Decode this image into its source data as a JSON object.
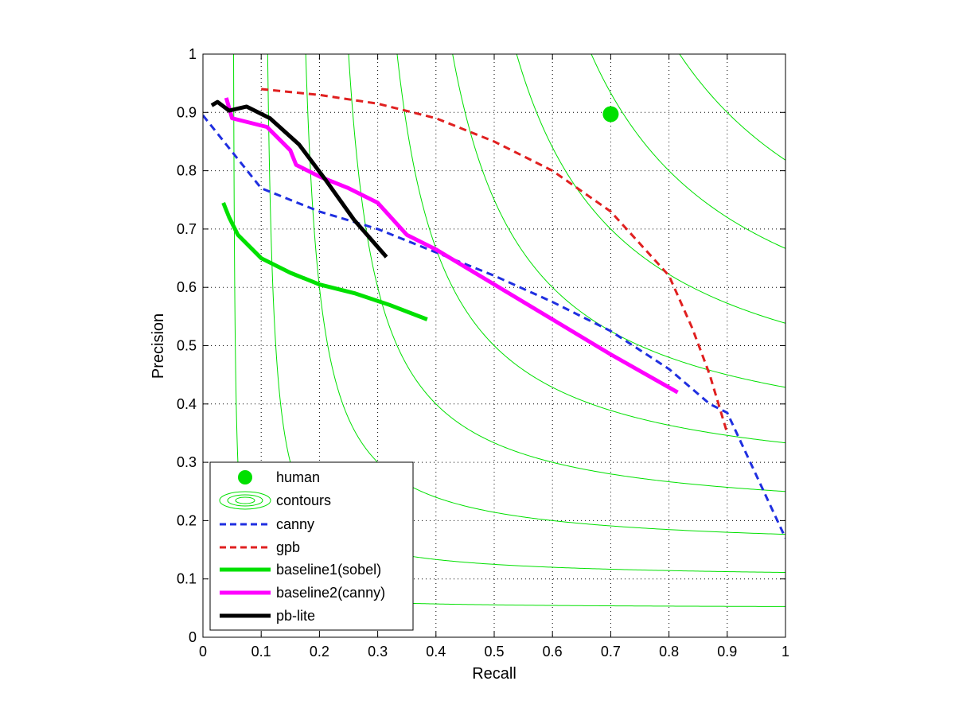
{
  "chart_data": {
    "type": "line",
    "xlabel": "Recall",
    "ylabel": "Precision",
    "xlim": [
      0,
      1
    ],
    "ylim": [
      0,
      1
    ],
    "xticks": [
      0,
      0.1,
      0.2,
      0.3,
      0.4,
      0.5,
      0.6,
      0.7,
      0.8,
      0.9,
      1
    ],
    "yticks": [
      0,
      0.1,
      0.2,
      0.3,
      0.4,
      0.5,
      0.6,
      0.7,
      0.8,
      0.9,
      1
    ],
    "xtick_labels": [
      "0",
      "0.1",
      "0.2",
      "0.3",
      "0.4",
      "0.5",
      "0.6",
      "0.7",
      "0.8",
      "0.9",
      "1"
    ],
    "ytick_labels": [
      "0",
      "0.1",
      "0.2",
      "0.3",
      "0.4",
      "0.5",
      "0.6",
      "0.7",
      "0.8",
      "0.9",
      "1"
    ],
    "grid": "dotted",
    "legend_placement": "bottom-left",
    "contours": {
      "name": "contours",
      "f_levels": [
        0.1,
        0.2,
        0.3,
        0.4,
        0.5,
        0.6,
        0.7,
        0.8,
        0.9
      ],
      "color": "#00e000"
    },
    "human": {
      "name": "human",
      "x": 0.7,
      "y": 0.897,
      "color": "#00e000"
    },
    "series": [
      {
        "name": "canny",
        "style": "dashed",
        "color": "#1f2fe0",
        "x": [
          0.0,
          0.1,
          0.2,
          0.3,
          0.4,
          0.5,
          0.6,
          0.7,
          0.8,
          0.87,
          0.9,
          1.0
        ],
        "y": [
          0.895,
          0.77,
          0.73,
          0.7,
          0.66,
          0.62,
          0.575,
          0.525,
          0.46,
          0.4,
          0.385,
          0.17
        ]
      },
      {
        "name": "gpb",
        "style": "dashed",
        "color": "#e02020",
        "x": [
          0.1,
          0.2,
          0.3,
          0.4,
          0.5,
          0.6,
          0.7,
          0.8,
          0.84,
          0.87,
          0.9
        ],
        "y": [
          0.94,
          0.93,
          0.915,
          0.89,
          0.85,
          0.8,
          0.73,
          0.62,
          0.53,
          0.45,
          0.35
        ]
      },
      {
        "name": "baseline1(sobel)",
        "style": "solid",
        "color": "#00e000",
        "x": [
          0.035,
          0.045,
          0.06,
          0.1,
          0.15,
          0.2,
          0.26,
          0.32,
          0.385
        ],
        "y": [
          0.745,
          0.72,
          0.69,
          0.65,
          0.625,
          0.605,
          0.59,
          0.57,
          0.545
        ]
      },
      {
        "name": "baseline2(canny)",
        "style": "solid",
        "color": "#ff00ff",
        "x": [
          0.04,
          0.05,
          0.11,
          0.15,
          0.16,
          0.2,
          0.25,
          0.3,
          0.35,
          0.4,
          0.5,
          0.6,
          0.7,
          0.815
        ],
        "y": [
          0.925,
          0.89,
          0.875,
          0.835,
          0.81,
          0.79,
          0.77,
          0.745,
          0.69,
          0.665,
          0.605,
          0.545,
          0.485,
          0.42
        ]
      },
      {
        "name": "pb-lite",
        "style": "solid",
        "color": "#000000",
        "x": [
          0.015,
          0.025,
          0.045,
          0.075,
          0.115,
          0.165,
          0.21,
          0.26,
          0.315
        ],
        "y": [
          0.912,
          0.918,
          0.903,
          0.91,
          0.89,
          0.845,
          0.785,
          0.715,
          0.652
        ]
      }
    ]
  }
}
